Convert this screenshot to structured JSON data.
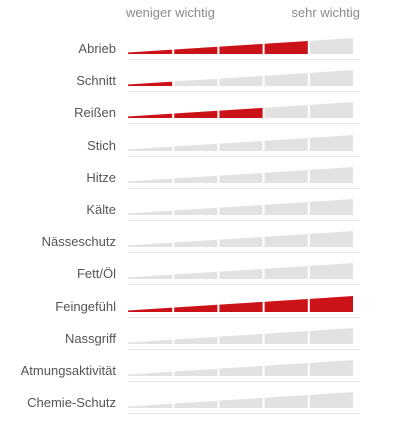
{
  "scale": {
    "low_label": "weniger wichtig",
    "high_label": "sehr wichtig",
    "max_segments": 5
  },
  "colors": {
    "filled": "#cc1219",
    "empty": "#e2e2e2",
    "separator": "#ffffff",
    "label": "#555555",
    "header": "#8a8a8a"
  },
  "criteria": [
    {
      "label": "Abrieb",
      "level": 4
    },
    {
      "label": "Schnitt",
      "level": 1
    },
    {
      "label": "Reißen",
      "level": 3
    },
    {
      "label": "Stich",
      "level": 0
    },
    {
      "label": "Hitze",
      "level": 0
    },
    {
      "label": "Kälte",
      "level": 0
    },
    {
      "label": "Nässeschutz",
      "level": 0
    },
    {
      "label": "Fett/Öl",
      "level": 0
    },
    {
      "label": "Feingefühl",
      "level": 5
    },
    {
      "label": "Nassgriff",
      "level": 0
    },
    {
      "label": "Atmungsaktivität",
      "level": 0
    },
    {
      "label": "Chemie-Schutz",
      "level": 0
    }
  ]
}
